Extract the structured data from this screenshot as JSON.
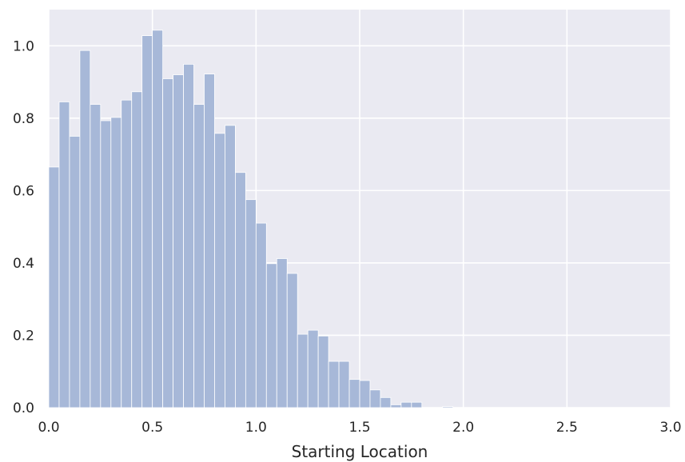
{
  "chart_data": {
    "type": "bar",
    "title": "",
    "xlabel": "Starting Location",
    "ylabel": "",
    "xlim": [
      0.0,
      3.0
    ],
    "ylim": [
      0.0,
      1.1
    ],
    "grid": true,
    "xticks": [
      0.0,
      0.5,
      1.0,
      1.5,
      2.0,
      2.5,
      3.0
    ],
    "xtick_labels": [
      "0.0",
      "0.5",
      "1.0",
      "1.5",
      "2.0",
      "2.5",
      "3.0"
    ],
    "yticks": [
      0.0,
      0.2,
      0.4,
      0.6,
      0.8,
      1.0
    ],
    "ytick_labels": [
      "0.0",
      "0.2",
      "0.4",
      "0.6",
      "0.8",
      "1.0"
    ],
    "bin_width": 0.05,
    "bins": [
      {
        "x": 0.0,
        "value": 0.665
      },
      {
        "x": 0.05,
        "value": 0.845
      },
      {
        "x": 0.1,
        "value": 0.75
      },
      {
        "x": 0.15,
        "value": 0.987
      },
      {
        "x": 0.2,
        "value": 0.838
      },
      {
        "x": 0.25,
        "value": 0.793
      },
      {
        "x": 0.3,
        "value": 0.802
      },
      {
        "x": 0.35,
        "value": 0.85
      },
      {
        "x": 0.4,
        "value": 0.873
      },
      {
        "x": 0.45,
        "value": 1.028
      },
      {
        "x": 0.5,
        "value": 1.043
      },
      {
        "x": 0.55,
        "value": 0.909
      },
      {
        "x": 0.6,
        "value": 0.92
      },
      {
        "x": 0.65,
        "value": 0.949
      },
      {
        "x": 0.7,
        "value": 0.838
      },
      {
        "x": 0.75,
        "value": 0.922
      },
      {
        "x": 0.8,
        "value": 0.758
      },
      {
        "x": 0.85,
        "value": 0.78
      },
      {
        "x": 0.9,
        "value": 0.65
      },
      {
        "x": 0.95,
        "value": 0.575
      },
      {
        "x": 1.0,
        "value": 0.51
      },
      {
        "x": 1.05,
        "value": 0.398
      },
      {
        "x": 1.1,
        "value": 0.412
      },
      {
        "x": 1.15,
        "value": 0.371
      },
      {
        "x": 1.2,
        "value": 0.203
      },
      {
        "x": 1.25,
        "value": 0.214
      },
      {
        "x": 1.3,
        "value": 0.198
      },
      {
        "x": 1.35,
        "value": 0.128
      },
      {
        "x": 1.4,
        "value": 0.128
      },
      {
        "x": 1.45,
        "value": 0.078
      },
      {
        "x": 1.5,
        "value": 0.075
      },
      {
        "x": 1.55,
        "value": 0.049
      },
      {
        "x": 1.6,
        "value": 0.028
      },
      {
        "x": 1.65,
        "value": 0.008
      },
      {
        "x": 1.7,
        "value": 0.015
      },
      {
        "x": 1.75,
        "value": 0.015
      },
      {
        "x": 1.8,
        "value": 0.0
      },
      {
        "x": 1.85,
        "value": 0.0
      },
      {
        "x": 1.9,
        "value": 0.003
      }
    ],
    "colors": {
      "plot_background": "#eaeaf2",
      "grid": "#ffffff",
      "bar_fill": "#a7b8d8",
      "bar_edge": "#ffffff",
      "text": "#262626"
    }
  }
}
